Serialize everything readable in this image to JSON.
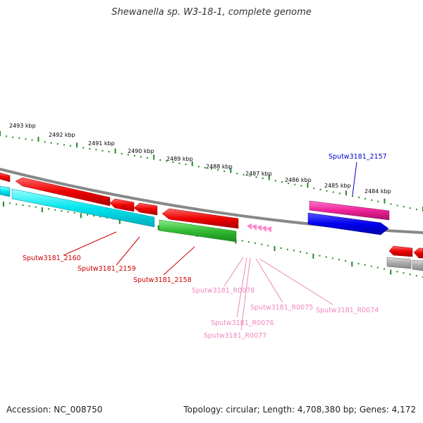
{
  "header": {
    "title": "Shewanella sp. W3-18-1, complete genome"
  },
  "footer": {
    "accession": "Accession: NC_008750",
    "topology": "Topology: circular; Length: 4,708,380 bp; Genes: 4,172"
  },
  "scale_labels": [
    "2493 kbp",
    "2492 kbp",
    "2491 kbp",
    "2490 kbp",
    "2489 kbp",
    "2488 kbp",
    "2487 kbp",
    "2486 kbp",
    "2485 kbp",
    "2484 kbp"
  ],
  "gene_labels": [
    {
      "text": "Sputw3181_2157",
      "color": "#0000cc"
    },
    {
      "text": "Sputw3181_2160",
      "color": "#cc0000"
    },
    {
      "text": "Sputw3181_2159",
      "color": "#cc0000"
    },
    {
      "text": "Sputw3181_2158",
      "color": "#cc0000"
    },
    {
      "text": "Sputw3181_R0078",
      "color": "#ee88bb"
    },
    {
      "text": "Sputw3181_R0075",
      "color": "#ee88bb"
    },
    {
      "text": "Sputw3181_R0074",
      "color": "#ee88bb"
    },
    {
      "text": "Sputw3181_R0076",
      "color": "#ee88bb"
    },
    {
      "text": "Sputw3181_R0077",
      "color": "#ee88bb"
    }
  ],
  "colors": {
    "backbone": "#888888",
    "tick_green": "#228822",
    "gene_red": "#ee0000",
    "gene_cyan": "#00e5ee",
    "gene_green": "#33bb33",
    "gene_pink": "#ee2299",
    "gene_blue": "#0000ee",
    "gene_gray": "#aaaaaa",
    "rna_pink": "#ff88cc"
  }
}
